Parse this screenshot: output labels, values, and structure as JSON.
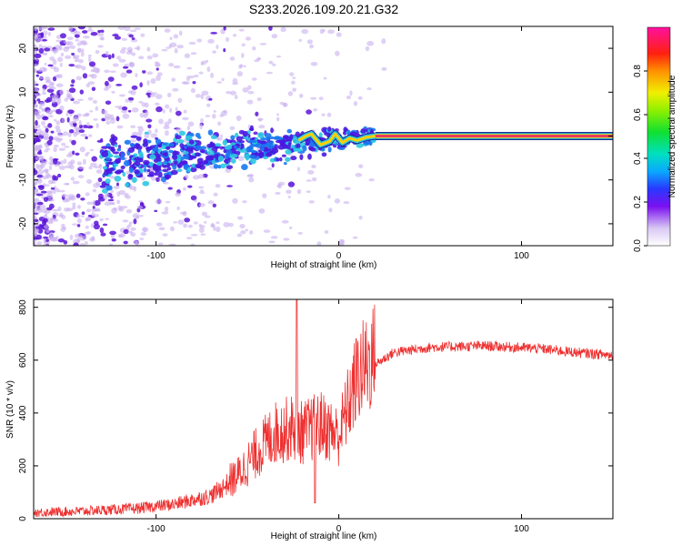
{
  "title": "S233.2026.109.20.21.G32",
  "colors": {
    "snr_line": "#ee3030",
    "signal_core": "#e8206e",
    "signal_edge": "#2cc8e0",
    "scatter_dark": "#5a14d8",
    "scatter_light": "#c9b0f0"
  },
  "chart_data": [
    {
      "type": "heatmap",
      "name": "spectrogram",
      "xlabel": "Height of straight line (km)",
      "ylabel": "Frequency (Hz)",
      "xlim": [
        -167,
        150
      ],
      "ylim": [
        -25,
        25
      ],
      "x_ticks": [
        -100,
        0,
        100
      ],
      "x_tick_labels": [
        "-100",
        "0",
        "100"
      ],
      "y_ticks": [
        20,
        10,
        0,
        -10,
        -20
      ],
      "y_tick_labels": [
        "20",
        "10",
        "0",
        "-10",
        "-20"
      ],
      "signal_start_km": 20,
      "signal_frequency_hz": 0,
      "colorbar": {
        "label": "Normalized spectral amplitude",
        "range": [
          0,
          1
        ],
        "ticks": [
          0.0,
          0.2,
          0.4,
          0.6,
          0.8
        ],
        "tick_labels": [
          "0.0",
          "0.2",
          "0.4",
          "0.6",
          "0.8"
        ]
      }
    },
    {
      "type": "line",
      "name": "snr",
      "xlabel": "Height of straight line (km)",
      "ylabel": "SNR (10 * v/v)",
      "xlim": [
        -167,
        150
      ],
      "ylim": [
        0,
        830
      ],
      "x_ticks": [
        -100,
        0,
        100
      ],
      "x_tick_labels": [
        "-100",
        "0",
        "100"
      ],
      "y_ticks": [
        0,
        200,
        400,
        600,
        800
      ],
      "y_tick_labels": [
        "0",
        "200",
        "400",
        "600",
        "800"
      ],
      "envelope": {
        "x": [
          -167,
          -140,
          -110,
          -90,
          -70,
          -55,
          -45,
          -35,
          -25,
          -20,
          -10,
          0,
          10,
          20,
          30,
          50,
          80,
          110,
          130,
          150
        ],
        "y": [
          20,
          25,
          35,
          50,
          80,
          150,
          230,
          300,
          320,
          300,
          330,
          290,
          500,
          580,
          625,
          645,
          650,
          640,
          625,
          615
        ]
      },
      "spike_x": -23,
      "spike_y": 830,
      "dip_x": -13,
      "dip_y": 60
    }
  ]
}
